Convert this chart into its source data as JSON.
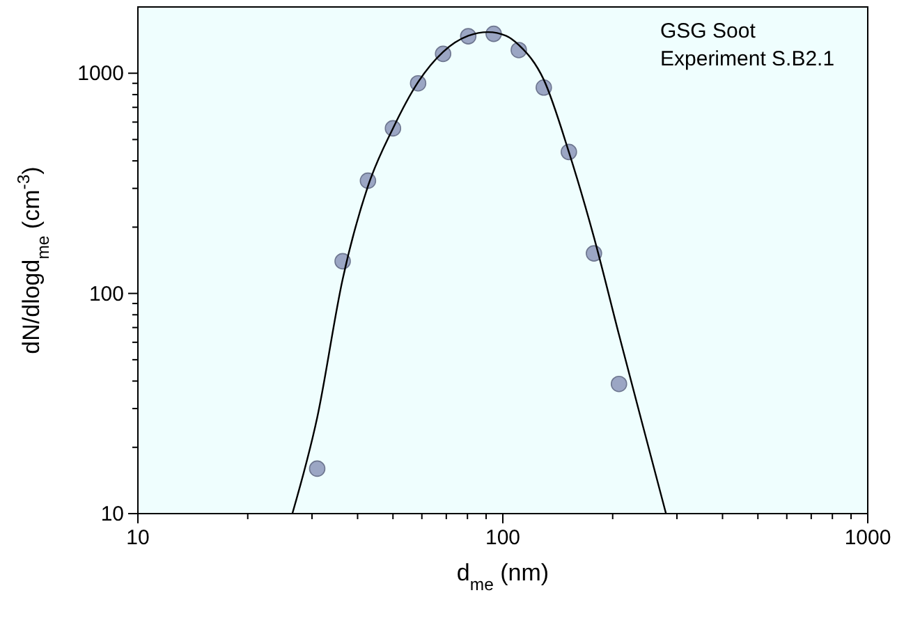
{
  "chart_data": {
    "type": "scatter",
    "xlabel": "d$_{me}$ (nm)",
    "ylabel": "dN/dlogd$_{me}$ (cm$^{-3}$)",
    "log": "xy",
    "xlim": [
      10,
      1000
    ],
    "ylim": [
      10,
      2000
    ],
    "xticks": [
      10,
      {
        "value": 20,
        "label": null
      },
      {
        "value": 30,
        "label": null
      },
      {
        "value": 40,
        "label": null
      },
      {
        "value": 50,
        "label": null
      },
      {
        "value": 60,
        "label": null
      },
      {
        "value": 70,
        "label": null
      },
      {
        "value": 80,
        "label": null
      },
      {
        "value": 90,
        "label": null
      },
      100,
      {
        "value": 200,
        "label": null
      },
      {
        "value": 300,
        "label": null
      },
      {
        "value": 400,
        "label": null
      },
      {
        "value": 500,
        "label": null
      },
      {
        "value": 600,
        "label": null
      },
      {
        "value": 700,
        "label": null
      },
      {
        "value": 800,
        "label": null
      },
      {
        "value": 900,
        "label": null
      },
      1000
    ],
    "yticks": [
      10,
      {
        "value": 20,
        "label": null
      },
      {
        "value": 30,
        "label": null
      },
      {
        "value": 40,
        "label": null
      },
      {
        "value": 50,
        "label": null
      },
      {
        "value": 60,
        "label": null
      },
      {
        "value": 70,
        "label": null
      },
      {
        "value": 80,
        "label": null
      },
      {
        "value": 90,
        "label": null
      },
      100,
      {
        "value": 200,
        "label": null
      },
      {
        "value": 300,
        "label": null
      },
      {
        "value": 400,
        "label": null
      },
      {
        "value": 500,
        "label": null
      },
      {
        "value": 600,
        "label": null
      },
      {
        "value": 700,
        "label": null
      },
      {
        "value": 800,
        "label": null
      },
      {
        "value": 900,
        "label": null
      },
      1000
    ],
    "grid": false,
    "annotations": [
      "GSG Soot",
      "Experiment S.B2.1"
    ],
    "series": [
      {
        "color": "#9ba6c4",
        "marker": "circle",
        "x": [
          31.0,
          36.4,
          42.7,
          50.0,
          58.6,
          68.6,
          80.4,
          94.4,
          110.6,
          129.5,
          151.7,
          177.7,
          208.1
        ],
        "values": [
          16,
          140,
          325,
          562,
          900,
          1225,
          1472,
          1510,
          1274,
          861,
          439,
          152,
          38.8
        ]
      },
      {
        "type": "line",
        "color": "#000000",
        "marker": "none",
        "line_style": "solid",
        "x": [
          26.5,
          31.0,
          36.4,
          42.7,
          50.0,
          58.6,
          68.6,
          80.4,
          91.2,
          102,
          110.6,
          129.5,
          151.7,
          177.7,
          208.1,
          242.5,
          280
        ],
        "values": [
          10,
          27.3,
          116,
          307,
          562,
          912,
          1250,
          1479,
          1538,
          1479,
          1343,
          934,
          439,
          180,
          65,
          24.7,
          10
        ]
      }
    ]
  }
}
